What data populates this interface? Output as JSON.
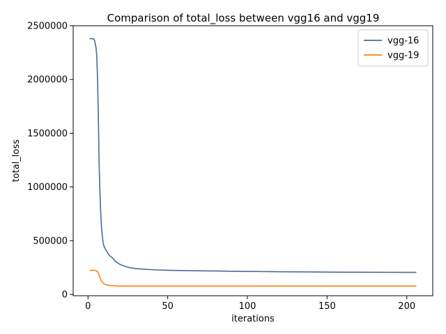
{
  "chart_data": {
    "type": "line",
    "title": "Comparison of total_loss between vgg16 and vgg19",
    "xlabel": "iterations",
    "ylabel": "total_loss",
    "xlim": [
      -9.3,
      216.3
    ],
    "ylim": [
      -12000,
      2500000
    ],
    "xticks": [
      0,
      50,
      100,
      150,
      200
    ],
    "xtick_labels": [
      "0",
      "50",
      "100",
      "150",
      "200"
    ],
    "yticks": [
      0,
      500000,
      1000000,
      1500000,
      2000000,
      2500000
    ],
    "ytick_labels": [
      "0",
      "500000",
      "1000000",
      "1500000",
      "2000000",
      "2500000"
    ],
    "grid": false,
    "legend_position": "top-right",
    "series": [
      {
        "name": "vgg-16",
        "color": "#4c6a93",
        "x": [
          1,
          3,
          4,
          5,
          5.5,
          6,
          6.5,
          7,
          7.5,
          8,
          8.5,
          9,
          9.5,
          10,
          11,
          12,
          13,
          14,
          15,
          16,
          17,
          18,
          19,
          20,
          22,
          24,
          26,
          28,
          30,
          35,
          40,
          50,
          60,
          70,
          80,
          90,
          100,
          120,
          140,
          160,
          180,
          200,
          206
        ],
        "values": [
          2380000,
          2380000,
          2370000,
          2300000,
          2220000,
          2000000,
          1650000,
          1200000,
          950000,
          750000,
          620000,
          540000,
          480000,
          450000,
          420000,
          395000,
          370000,
          355000,
          345000,
          330000,
          310000,
          300000,
          290000,
          280000,
          268000,
          258000,
          250000,
          245000,
          240000,
          235000,
          230000,
          225000,
          222000,
          220000,
          218000,
          216000,
          214000,
          211000,
          209000,
          207000,
          206000,
          205000,
          205000
        ]
      },
      {
        "name": "vgg-19",
        "color": "#ff7f0e",
        "x": [
          1,
          3,
          4,
          5,
          5.5,
          6,
          6.5,
          7,
          7.5,
          8,
          9,
          10,
          11,
          12,
          13,
          14,
          15,
          16,
          17,
          18,
          20,
          25,
          30,
          40,
          50,
          100,
          150,
          200,
          206
        ],
        "values": [
          225000,
          224000,
          226000,
          222000,
          218000,
          212000,
          200000,
          180000,
          160000,
          135000,
          115000,
          100000,
          92000,
          88000,
          85000,
          83000,
          82000,
          81000,
          80000,
          79000,
          78500,
          78000,
          78000,
          78000,
          78000,
          78000,
          78000,
          78000,
          78000
        ]
      }
    ]
  }
}
